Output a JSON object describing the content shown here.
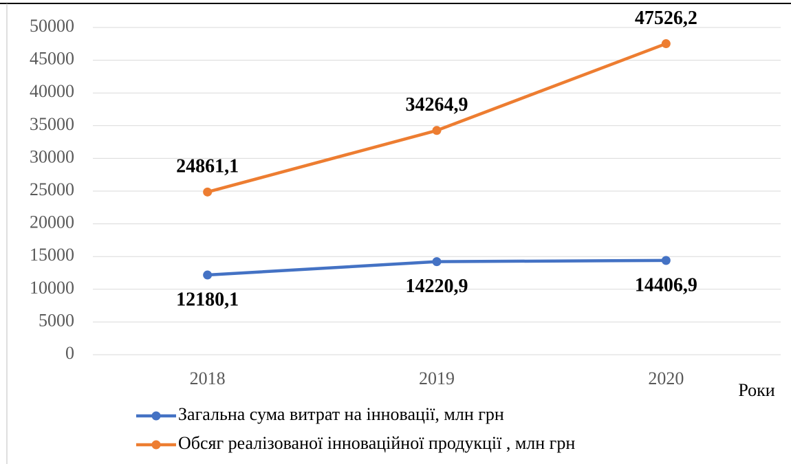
{
  "chart_data": {
    "type": "line",
    "categories": [
      "2018",
      "2019",
      "2020"
    ],
    "x_label": "Роки",
    "series": [
      {
        "name": "Загальна сума витрат на інновації, млн грн",
        "color": "#4472c4",
        "values": [
          12180.1,
          14220.9,
          14406.9
        ],
        "value_labels": [
          "12180,1",
          "14220,9",
          "14406,9"
        ]
      },
      {
        "name": "Обсяг реалізованої інноваційної продукції , млн грн",
        "color": "#ed7d31",
        "values": [
          24861.1,
          34264.9,
          47526.2
        ],
        "value_labels": [
          "24861,1",
          "34264,9",
          "47526,2"
        ]
      }
    ],
    "ylim": [
      0,
      50000
    ],
    "yticks": [
      0,
      5000,
      10000,
      15000,
      20000,
      25000,
      30000,
      35000,
      40000,
      45000,
      50000
    ],
    "grid": true
  }
}
